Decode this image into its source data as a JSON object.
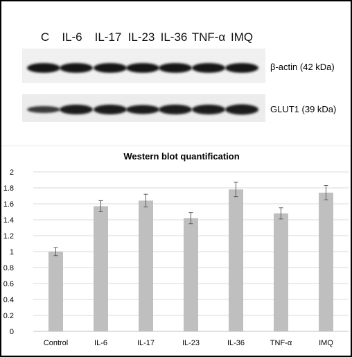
{
  "blot": {
    "lane_labels": [
      "C",
      "IL-6",
      "IL-17",
      "IL-23",
      "IL-36",
      "TNF-α",
      "IMQ"
    ],
    "rows": [
      {
        "label": "β-actin (42 kDa)"
      },
      {
        "label": "GLUT1  (39 kDa)"
      }
    ]
  },
  "chart_data": {
    "type": "bar",
    "title": "Western blot quantification",
    "xlabel": "",
    "ylabel": "",
    "categories": [
      "Control",
      "IL-6",
      "IL-17",
      "IL-23",
      "IL-36",
      "TNF-α",
      "IMQ"
    ],
    "values": [
      1.0,
      1.57,
      1.64,
      1.42,
      1.78,
      1.48,
      1.74
    ],
    "errors": [
      0.05,
      0.07,
      0.08,
      0.07,
      0.09,
      0.07,
      0.09
    ],
    "ylim": [
      0,
      2
    ],
    "yticks": [
      "0",
      "0.2",
      "0.4",
      "0.6",
      "0.8",
      "1",
      "1.2",
      "1.4",
      "1.6",
      "1.8",
      "2"
    ],
    "grid": true,
    "bar_color": "#bfbfbf",
    "grid_color": "#d9d9d9",
    "errorbar_color": "#595959"
  }
}
